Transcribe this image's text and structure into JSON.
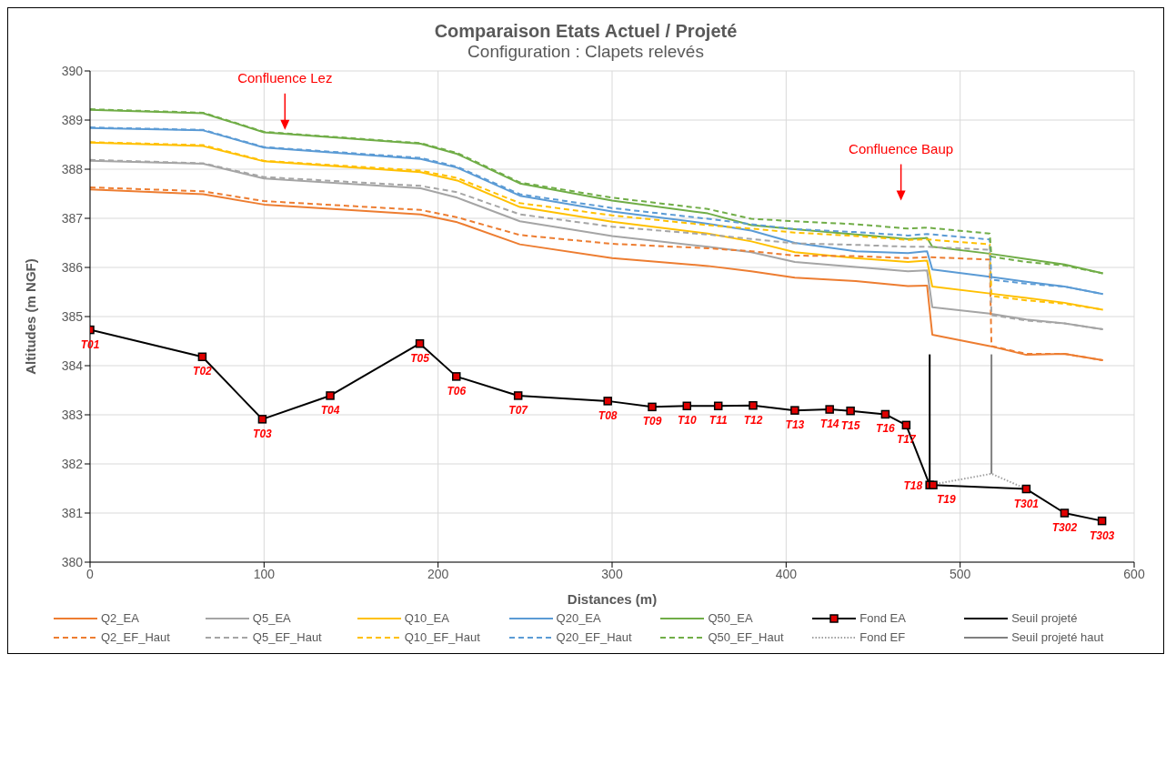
{
  "chart_data": {
    "type": "line",
    "title": "Comparaison Etats Actuel / Projeté",
    "subtitle": "Configuration : Clapets relevés",
    "xlabel": "Distances (m)",
    "ylabel": "Altitudes (m NGF)",
    "xlim": [
      0,
      600
    ],
    "xticks": [
      0,
      100,
      200,
      300,
      400,
      500,
      600
    ],
    "ylim": [
      380,
      390
    ],
    "yticks": [
      380,
      381,
      382,
      383,
      384,
      385,
      386,
      387,
      388,
      389,
      390
    ],
    "grid": true,
    "legend": "bottom",
    "annotations": [
      "Confluence Lez",
      "Confluence Baup"
    ],
    "series": [
      {
        "name": "Q2_EA",
        "color": "#ed7d31",
        "line_style": "solid",
        "x": [
          0,
          65,
          100,
          190,
          211,
          247,
          300,
          355,
          380,
          405,
          440,
          470,
          481,
          484,
          517,
          538,
          560,
          582
        ],
        "values": [
          387.59,
          387.49,
          387.28,
          387.08,
          386.92,
          386.47,
          386.19,
          386.03,
          385.92,
          385.79,
          385.72,
          385.62,
          385.63,
          384.63,
          384.4,
          384.22,
          384.24,
          384.11
        ]
      },
      {
        "name": "Q5_EA",
        "color": "#a5a5a5",
        "line_style": "solid",
        "x": [
          0,
          65,
          100,
          190,
          211,
          247,
          300,
          355,
          380,
          405,
          440,
          470,
          481,
          484,
          517,
          538,
          560,
          582
        ],
        "values": [
          388.17,
          388.11,
          387.81,
          387.61,
          387.42,
          386.94,
          386.64,
          386.42,
          386.31,
          386.11,
          386.01,
          385.92,
          385.94,
          385.19,
          385.06,
          384.94,
          384.86,
          384.74
        ]
      },
      {
        "name": "Q10_EA",
        "color": "#ffc000",
        "line_style": "solid",
        "x": [
          0,
          65,
          100,
          190,
          211,
          247,
          300,
          355,
          380,
          405,
          440,
          470,
          481,
          484,
          517,
          538,
          560,
          582
        ],
        "values": [
          388.54,
          388.47,
          388.16,
          387.94,
          387.77,
          387.23,
          386.93,
          386.69,
          386.53,
          386.31,
          386.19,
          386.11,
          386.14,
          385.61,
          385.47,
          385.38,
          385.28,
          385.14
        ]
      },
      {
        "name": "Q20_EA",
        "color": "#5b9bd5",
        "line_style": "solid",
        "x": [
          0,
          65,
          100,
          190,
          211,
          247,
          300,
          355,
          380,
          405,
          440,
          470,
          481,
          484,
          517,
          538,
          560,
          582
        ],
        "values": [
          388.84,
          388.79,
          388.44,
          388.21,
          388.03,
          387.46,
          387.14,
          386.89,
          386.75,
          386.5,
          386.33,
          386.29,
          386.33,
          385.96,
          385.81,
          385.71,
          385.61,
          385.46
        ]
      },
      {
        "name": "Q50_EA",
        "color": "#70ad47",
        "line_style": "solid",
        "x": [
          0,
          65,
          100,
          190,
          211,
          247,
          300,
          355,
          380,
          405,
          440,
          470,
          481,
          484,
          517,
          538,
          560,
          582
        ],
        "values": [
          389.21,
          389.14,
          388.75,
          388.52,
          388.31,
          387.71,
          387.36,
          387.1,
          386.86,
          386.78,
          386.67,
          386.58,
          386.6,
          386.42,
          386.28,
          386.17,
          386.06,
          385.88
        ]
      },
      {
        "name": "Fond EA",
        "color": "#000000",
        "line_style": "solid",
        "marker": "square",
        "x": [
          0,
          64.5,
          99,
          138,
          189.5,
          210.5,
          246,
          297.5,
          323,
          343,
          361,
          381,
          405,
          425,
          437,
          457,
          469,
          482.5,
          484.5,
          538,
          560,
          581.5
        ],
        "values": [
          384.73,
          384.18,
          382.91,
          383.39,
          384.45,
          383.78,
          383.39,
          383.28,
          383.16,
          383.18,
          383.18,
          383.19,
          383.09,
          383.11,
          383.08,
          383.01,
          382.79,
          381.57,
          381.57,
          381.49,
          381.0,
          380.84
        ],
        "value_labels": [
          "T01",
          "T02",
          "T03",
          "T04",
          "T05",
          "T06",
          "T07",
          "T08",
          "T09",
          "T10",
          "T11",
          "T12",
          "T13",
          "T14",
          "T15",
          "T16",
          "T17",
          "T18",
          "T19",
          "T301",
          "T302",
          "T303"
        ]
      },
      {
        "name": "Seuil projeté",
        "color": "#000000",
        "line_style": "solid",
        "x": [
          482.5,
          482.5
        ],
        "values": [
          381.57,
          384.23
        ]
      },
      {
        "name": "Q2_EF_Haut",
        "color": "#ed7d31",
        "line_style": "dashed",
        "x": [
          0,
          65,
          100,
          190,
          211,
          247,
          300,
          355,
          380,
          405,
          440,
          470,
          481,
          517,
          518,
          538,
          560,
          582
        ],
        "values": [
          387.63,
          387.55,
          387.35,
          387.17,
          387.02,
          386.66,
          386.48,
          386.39,
          386.33,
          386.24,
          386.23,
          386.19,
          386.21,
          386.16,
          384.4,
          384.24,
          384.24,
          384.11
        ]
      },
      {
        "name": "Q5_EF_Haut",
        "color": "#a5a5a5",
        "line_style": "dashed",
        "x": [
          0,
          65,
          100,
          190,
          211,
          247,
          300,
          355,
          380,
          405,
          440,
          470,
          481,
          517,
          518,
          538,
          560,
          582
        ],
        "values": [
          388.19,
          388.12,
          387.84,
          387.66,
          387.53,
          387.08,
          386.83,
          386.67,
          386.58,
          386.49,
          386.46,
          386.42,
          386.42,
          386.36,
          385.03,
          384.92,
          384.86,
          384.74
        ]
      },
      {
        "name": "Q10_EF_Haut",
        "color": "#ffc000",
        "line_style": "dashed",
        "x": [
          0,
          65,
          100,
          190,
          211,
          247,
          300,
          355,
          380,
          405,
          440,
          470,
          481,
          517,
          518,
          538,
          560,
          582
        ],
        "values": [
          388.55,
          388.49,
          388.17,
          387.97,
          387.82,
          387.31,
          387.06,
          386.86,
          386.79,
          386.71,
          386.64,
          386.56,
          386.57,
          386.47,
          385.42,
          385.33,
          385.26,
          385.14
        ]
      },
      {
        "name": "Q20_EF_Haut",
        "color": "#5b9bd5",
        "line_style": "dashed",
        "x": [
          0,
          65,
          100,
          190,
          211,
          247,
          300,
          355,
          380,
          405,
          440,
          470,
          481,
          517,
          518,
          538,
          560,
          582
        ],
        "values": [
          388.85,
          388.8,
          388.45,
          388.23,
          388.05,
          387.49,
          387.21,
          386.99,
          386.88,
          386.78,
          386.72,
          386.65,
          386.68,
          386.57,
          385.75,
          385.67,
          385.61,
          385.46
        ]
      },
      {
        "name": "Q50_EF_Haut",
        "color": "#70ad47",
        "line_style": "dashed",
        "x": [
          0,
          65,
          100,
          190,
          211,
          247,
          300,
          355,
          380,
          405,
          440,
          470,
          481,
          517,
          518,
          538,
          560,
          582
        ],
        "values": [
          389.22,
          389.15,
          388.76,
          388.53,
          388.33,
          387.73,
          387.42,
          387.19,
          386.99,
          386.94,
          386.88,
          386.79,
          386.81,
          386.69,
          386.22,
          386.11,
          386.04,
          385.88
        ]
      },
      {
        "name": "Fond EF",
        "color": "#a0a0a0",
        "line_style": "dotted",
        "x": [
          482.5,
          518,
          538
        ],
        "values": [
          381.57,
          381.8,
          381.49
        ]
      },
      {
        "name": "Seuil projeté haut",
        "color": "#808080",
        "line_style": "solid",
        "x": [
          518,
          518
        ],
        "values": [
          381.8,
          384.23
        ]
      }
    ]
  }
}
